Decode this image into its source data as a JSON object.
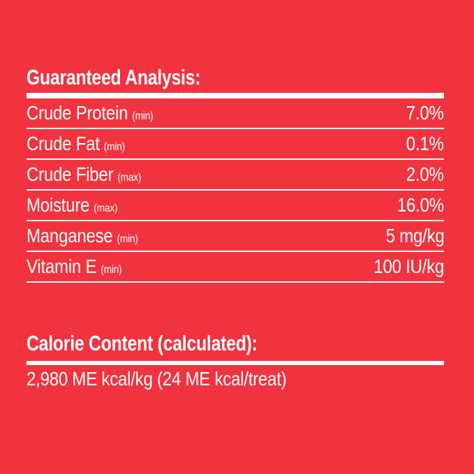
{
  "colors": {
    "background": "#F0333F",
    "text": "#FFFFFF"
  },
  "label": {
    "guaranteed_analysis": {
      "title": "Guaranteed Analysis:",
      "rows": [
        {
          "label": "Crude Protein",
          "qualifier": "(min)",
          "value": "7.0%"
        },
        {
          "label": "Crude Fat",
          "qualifier": "(min)",
          "value": "0.1%"
        },
        {
          "label": "Crude Fiber",
          "qualifier": "(max)",
          "value": "2.0%"
        },
        {
          "label": "Moisture",
          "qualifier": "(max)",
          "value": "16.0%"
        },
        {
          "label": "Manganese",
          "qualifier": "(min)",
          "value": "5 mg/kg"
        },
        {
          "label": "Vitamin E",
          "qualifier": "(min)",
          "value": "100 IU/kg"
        }
      ]
    },
    "calorie_content": {
      "title": "Calorie Content (calculated):",
      "value": "2,980 ME kcal/kg (24 ME kcal/treat)"
    }
  }
}
